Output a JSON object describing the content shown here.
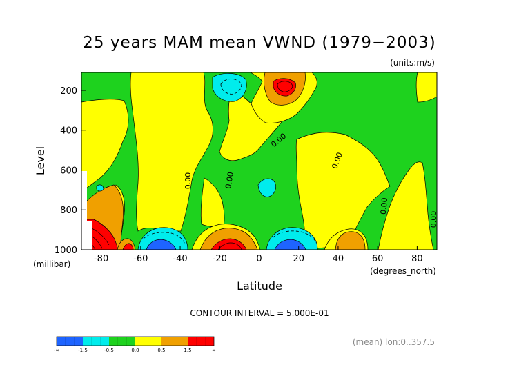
{
  "chart_data": {
    "type": "contour",
    "title": "25 years MAM mean VWND  (1979−2003)",
    "units_label": "(units:m/s)",
    "xlabel": "Latitude",
    "xunit": "(degrees_north)",
    "ylabel": "Level",
    "yunit": "(millibar)",
    "xlim": [
      -90,
      90
    ],
    "ylim": [
      1000,
      110
    ],
    "y_inverted": true,
    "x_ticks": [
      "-80",
      "-60",
      "-40",
      "-20",
      "0",
      "20",
      "40",
      "60",
      "80"
    ],
    "y_ticks": [
      "200",
      "400",
      "600",
      "800",
      "1000"
    ],
    "contour_interval_text": "CONTOUR INTERVAL = 5.000E-01",
    "contour_labels": [
      "0.00",
      "0.00",
      "0.00",
      "0.00",
      "0.00",
      "0.00"
    ],
    "colorbar": {
      "ticks": [
        "-∞",
        "-1.5",
        "-0.5",
        "0.0",
        "0.5",
        "1.5",
        "∞"
      ],
      "colors": [
        "#1e64ff",
        "#00ecec",
        "#1ed21e",
        "#ffff00",
        "#f0a000",
        "#ff0000"
      ]
    },
    "regions": [
      {
        "level": "positive strong",
        "lat": 12,
        "pressure": 160,
        "value": 2.0
      },
      {
        "level": "negative",
        "lat": -15,
        "pressure": 170,
        "value": -1.0
      },
      {
        "level": "positive strong",
        "lat": -16,
        "pressure": 960,
        "value": 2.0
      },
      {
        "level": "negative strong",
        "lat": 14,
        "pressure": 970,
        "value": -2.0
      },
      {
        "level": "negative strong",
        "lat": -52,
        "pressure": 975,
        "value": -2.0
      },
      {
        "level": "positive strong",
        "lat": -84,
        "pressure": 940,
        "value": 2.0
      }
    ],
    "footer_note": "(mean) lon:0..357.5"
  }
}
